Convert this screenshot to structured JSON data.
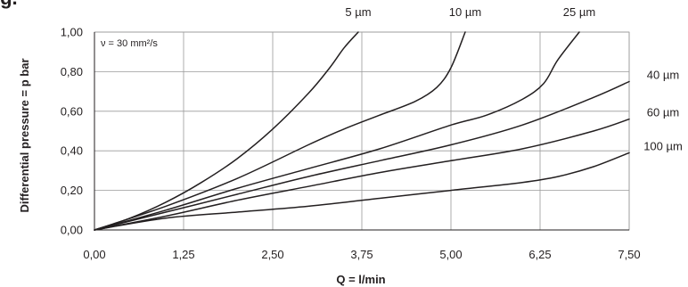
{
  "header": {
    "cut_title": "ig."
  },
  "chart_data": {
    "type": "line",
    "title": "",
    "xlabel": "Q = l/min",
    "ylabel": "Differential pressure = p bar",
    "annotation": "ν = 30 mm²/s",
    "xlim": [
      0,
      7.5
    ],
    "ylim": [
      0,
      1.0
    ],
    "grid": true,
    "x_ticks": [
      0,
      1.25,
      2.5,
      3.75,
      5.0,
      6.25,
      7.5
    ],
    "x_tick_labels": [
      "0,00",
      "1,25",
      "2,50",
      "3,75",
      "5,00",
      "6,25",
      "7,50"
    ],
    "y_ticks": [
      0,
      0.2,
      0.4,
      0.6,
      0.8,
      1.0
    ],
    "y_tick_labels": [
      "0,00",
      "0,20",
      "0,40",
      "0,60",
      "0,80",
      "1,00"
    ],
    "series": [
      {
        "name": "5 µm",
        "x": [
          0,
          0.5,
          1.0,
          1.5,
          2.0,
          2.5,
          3.0,
          3.3,
          3.5,
          3.7
        ],
        "y": [
          0,
          0.06,
          0.14,
          0.24,
          0.36,
          0.51,
          0.69,
          0.82,
          0.92,
          1.0
        ]
      },
      {
        "name": "10 µm",
        "x": [
          0,
          1.0,
          2.0,
          3.0,
          3.5,
          4.0,
          4.5,
          4.8,
          5.0,
          5.2
        ],
        "y": [
          0,
          0.12,
          0.26,
          0.43,
          0.51,
          0.58,
          0.65,
          0.72,
          0.82,
          1.0
        ]
      },
      {
        "name": "25 µm",
        "x": [
          0,
          1.0,
          2.0,
          3.0,
          4.0,
          5.0,
          5.5,
          6.0,
          6.3,
          6.5,
          6.8
        ],
        "y": [
          0,
          0.1,
          0.21,
          0.31,
          0.41,
          0.53,
          0.58,
          0.66,
          0.74,
          0.86,
          1.0
        ]
      },
      {
        "name": "40 µm",
        "x": [
          0,
          1.0,
          2.0,
          3.0,
          4.0,
          5.0,
          6.0,
          7.0,
          7.5
        ],
        "y": [
          0,
          0.09,
          0.18,
          0.27,
          0.35,
          0.43,
          0.53,
          0.67,
          0.75
        ]
      },
      {
        "name": "60 µm",
        "x": [
          0,
          1.0,
          2.0,
          3.0,
          4.0,
          5.0,
          6.0,
          7.0,
          7.5
        ],
        "y": [
          0,
          0.07,
          0.15,
          0.22,
          0.29,
          0.35,
          0.41,
          0.5,
          0.56
        ]
      },
      {
        "name": "100 µm",
        "x": [
          0,
          1.0,
          2.0,
          3.0,
          4.0,
          5.0,
          6.0,
          6.5,
          7.0,
          7.5
        ],
        "y": [
          0,
          0.06,
          0.09,
          0.12,
          0.16,
          0.2,
          0.24,
          0.27,
          0.32,
          0.39
        ]
      }
    ]
  }
}
